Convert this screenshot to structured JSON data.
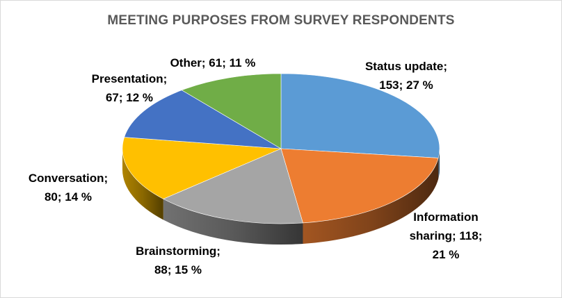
{
  "chart_data": {
    "type": "pie",
    "title": "MEETING PURPOSES FROM SURVEY RESPONDENTS",
    "slices": [
      {
        "name": "Status update",
        "value": 153,
        "percent": 27,
        "color": "#5b9bd5",
        "label_lines": [
          "Status update;",
          "153; 27 %"
        ]
      },
      {
        "name": "Information sharing",
        "value": 118,
        "percent": 21,
        "color": "#ed7d31",
        "label_lines": [
          "Information",
          "sharing; 118;",
          "21 %"
        ]
      },
      {
        "name": "Brainstorming",
        "value": 88,
        "percent": 15,
        "color": "#a5a5a5",
        "label_lines": [
          "Brainstorming;",
          "88; 15 %"
        ]
      },
      {
        "name": "Conversation",
        "value": 80,
        "percent": 14,
        "color": "#ffc000",
        "label_lines": [
          "Conversation;",
          "80; 14 %"
        ]
      },
      {
        "name": "Presentation",
        "value": 67,
        "percent": 12,
        "color": "#4472c4",
        "label_lines": [
          "Presentation;",
          "67; 12 %"
        ]
      },
      {
        "name": "Other",
        "value": 61,
        "percent": 11,
        "color": "#70ad47",
        "label_lines": [
          "Other; 61; 11 %"
        ]
      }
    ]
  }
}
